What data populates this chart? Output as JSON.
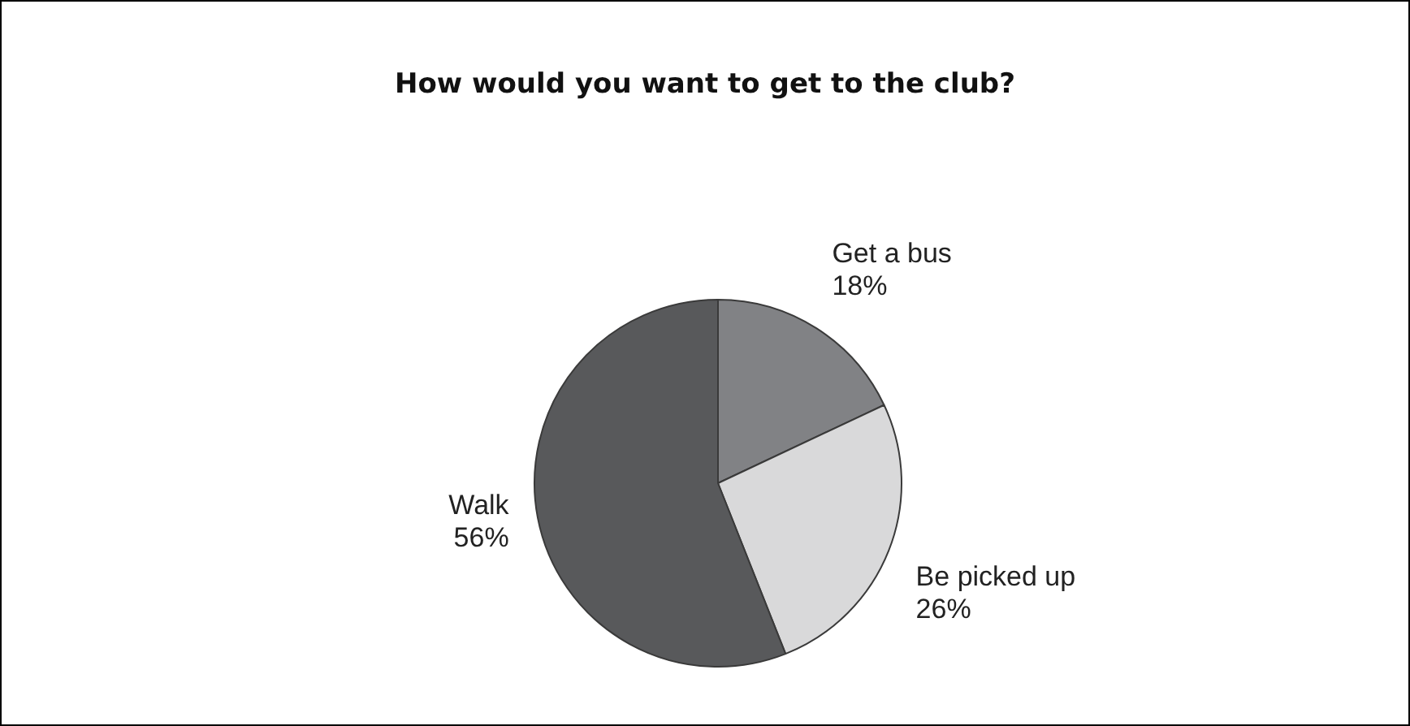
{
  "chart_data": {
    "type": "pie",
    "title": "How would you want to get to the club?",
    "categories": [
      "Get a bus",
      "Be picked up",
      "Walk"
    ],
    "values": [
      18,
      26,
      56
    ],
    "value_labels": [
      "18%",
      "26%",
      "56%"
    ],
    "colors": [
      "#818285",
      "#d9d9da",
      "#58595b"
    ],
    "legend": false
  }
}
